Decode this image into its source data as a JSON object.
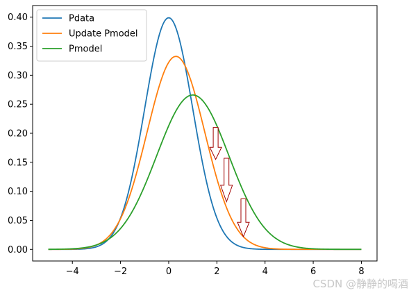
{
  "chart_data": {
    "type": "line",
    "title": "",
    "xlabel": "",
    "ylabel": "",
    "xlim": [
      -5.65,
      8.65
    ],
    "ylim": [
      -0.02,
      0.42
    ],
    "xticks": [
      -4,
      -2,
      0,
      2,
      4,
      6,
      8
    ],
    "xtick_labels": [
      "−4",
      "−2",
      "0",
      "2",
      "4",
      "6",
      "8"
    ],
    "yticks": [
      0.0,
      0.05,
      0.1,
      0.15,
      0.2,
      0.25,
      0.3,
      0.35,
      0.4
    ],
    "ytick_labels": [
      "0.00",
      "0.05",
      "0.10",
      "0.15",
      "0.20",
      "0.25",
      "0.30",
      "0.35",
      "0.40"
    ],
    "x_range": [
      -5,
      8
    ],
    "legend_position": "top-left",
    "series": [
      {
        "name": "Pdata",
        "color": "#1f77b4",
        "distribution": "normal",
        "mean": 0.0,
        "std": 1.0,
        "peak": 0.399
      },
      {
        "name": "Update Pmodel",
        "color": "#ff7f0e",
        "distribution": "normal",
        "mean": 0.3,
        "std": 1.2,
        "peak": 0.332
      },
      {
        "name": "Pmodel",
        "color": "#2ca02c",
        "distribution": "normal",
        "mean": 1.0,
        "std": 1.5,
        "peak": 0.266
      }
    ],
    "annotations": [
      {
        "type": "down-arrow",
        "x": 1.95,
        "y_from": 0.21,
        "y_to": 0.155,
        "color": "#a00000"
      },
      {
        "type": "down-arrow",
        "x": 2.4,
        "y_from": 0.157,
        "y_to": 0.082,
        "color": "#a00000"
      },
      {
        "type": "down-arrow",
        "x": 3.1,
        "y_from": 0.087,
        "y_to": 0.022,
        "color": "#a00000"
      }
    ]
  },
  "watermark": "CSDN @静静的喝酒"
}
